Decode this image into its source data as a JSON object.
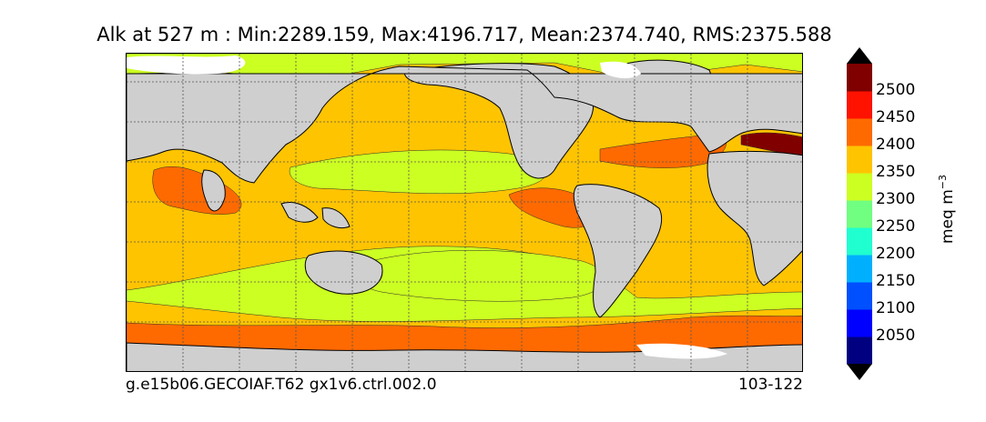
{
  "title": "Alk at 527 m : Min:2289.159, Max:4196.717, Mean:2374.740, RMS:2375.588",
  "caption_left": "g.e15b06.GECOIAF.T62 gx1v6.ctrl.002.0",
  "caption_right": "103-122",
  "colorbar": {
    "unit_base": "meq m",
    "unit_exp": "−3",
    "ticks": [
      "2500",
      "2450",
      "2400",
      "2350",
      "2300",
      "2250",
      "2200",
      "2150",
      "2100",
      "2050"
    ],
    "colors": [
      "#000080",
      "#0000ff",
      "#0050ff",
      "#00b0ff",
      "#20ffd0",
      "#70ff80",
      "#ccff22",
      "#ffc400",
      "#ff6a00",
      "#ff1200",
      "#800000"
    ],
    "over_color": "#000000",
    "under_color": "#000000"
  },
  "map": {
    "land_color": "#cfcfcf",
    "ice_color": "#ffffff",
    "colors": {
      "c2300_2350": "#ccff22",
      "c2350_2400": "#ffc400",
      "c2400_2450": "#ff6a00",
      "c2500_plus": "#800000"
    }
  }
}
